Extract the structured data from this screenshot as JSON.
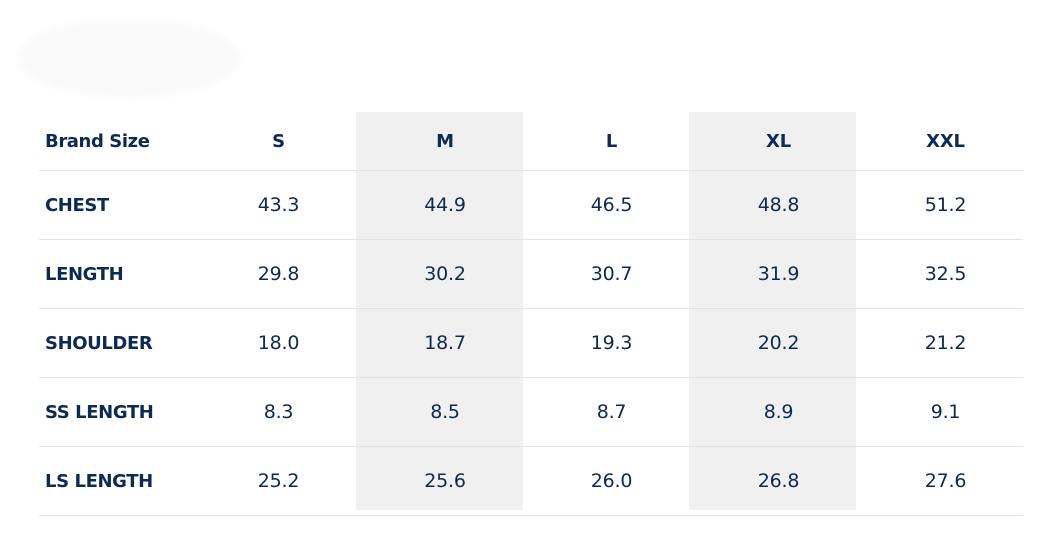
{
  "colors": {
    "text": "#0c2a52",
    "shade": "#f0f0f0",
    "divider": "#e3e3e3"
  },
  "table": {
    "header_label": "Brand Size",
    "sizes": [
      "S",
      "M",
      "L",
      "XL",
      "XXL"
    ],
    "rows": [
      {
        "label": "CHEST",
        "values": [
          "43.3",
          "44.9",
          "46.5",
          "48.8",
          "51.2"
        ]
      },
      {
        "label": "LENGTH",
        "values": [
          "29.8",
          "30.2",
          "30.7",
          "31.9",
          "32.5"
        ]
      },
      {
        "label": "SHOULDER",
        "values": [
          "18.0",
          "18.7",
          "19.3",
          "20.2",
          "21.2"
        ]
      },
      {
        "label": "SS LENGTH",
        "values": [
          "8.3",
          "8.5",
          "8.7",
          "8.9",
          "9.1"
        ]
      },
      {
        "label": "LS LENGTH",
        "values": [
          "25.2",
          "25.6",
          "26.0",
          "26.8",
          "27.6"
        ]
      }
    ]
  }
}
